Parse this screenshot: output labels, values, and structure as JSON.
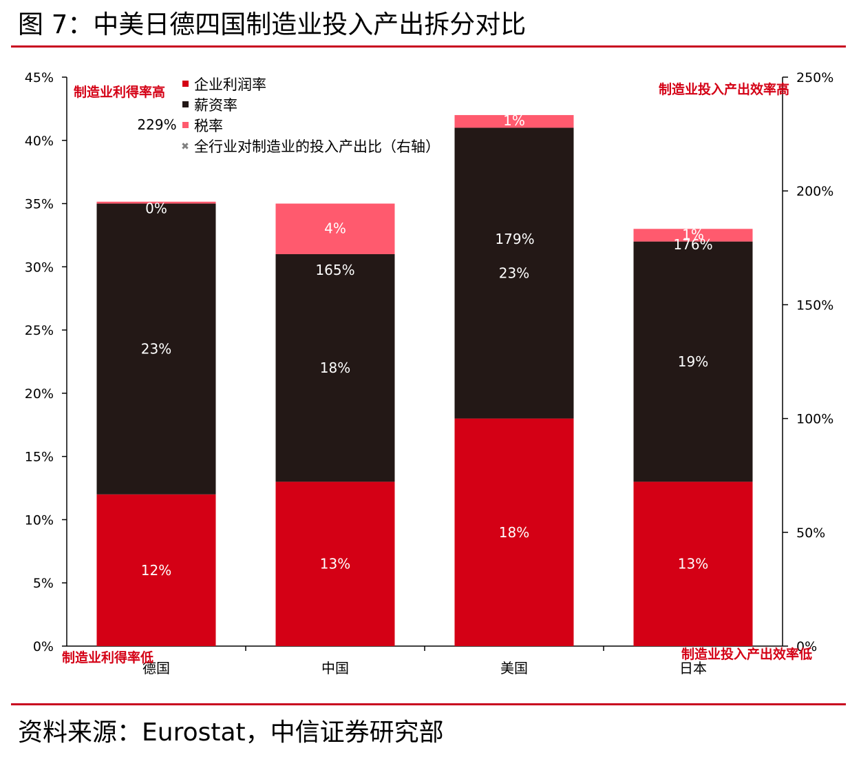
{
  "figure": {
    "title": "图 7：中美日德四国制造业投入产出拆分对比",
    "source": "资料来源：Eurostat，中信证券研究部"
  },
  "colors": {
    "profit": "#d40015",
    "salary": "#231816",
    "tax": "#ff5a6e",
    "ratio_marker": "#808080",
    "rule": "#c8001e"
  },
  "chart_data": {
    "type": "bar",
    "stacked": true,
    "categories": [
      "德国",
      "中国",
      "美国",
      "日本"
    ],
    "series": [
      {
        "name": "企业利润率",
        "values": [
          12,
          13,
          18,
          13
        ],
        "labels": [
          "12%",
          "13%",
          "18%",
          "13%"
        ]
      },
      {
        "name": "薪资率",
        "values": [
          23,
          18,
          23,
          19
        ],
        "labels": [
          "23%",
          "18%",
          "23%",
          "19%"
        ]
      },
      {
        "name": "税率",
        "values": [
          0,
          4,
          1,
          1
        ],
        "labels": [
          "0%",
          "4%",
          "1%",
          "1%"
        ]
      }
    ],
    "secondary_series": {
      "name": "全行业对制造业的投入产出比（右轴）",
      "labels": [
        "229%",
        "165%",
        "179%",
        "176%"
      ]
    },
    "y_left": {
      "ylim": [
        0,
        45
      ],
      "ticks": [
        "0%",
        "5%",
        "10%",
        "15%",
        "20%",
        "25%",
        "30%",
        "35%",
        "40%",
        "45%"
      ]
    },
    "y_right": {
      "ylim": [
        0,
        250
      ],
      "ticks": [
        "0%",
        "50%",
        "100%",
        "150%",
        "200%",
        "250%"
      ]
    },
    "annotations": {
      "left_top": "制造业利得率高",
      "left_bottom": "制造业利得率低",
      "right_top": "制造业投入产出效率高",
      "right_bottom": "制造业投入产出效率低"
    },
    "grid": false,
    "legend_position": "top-left"
  }
}
